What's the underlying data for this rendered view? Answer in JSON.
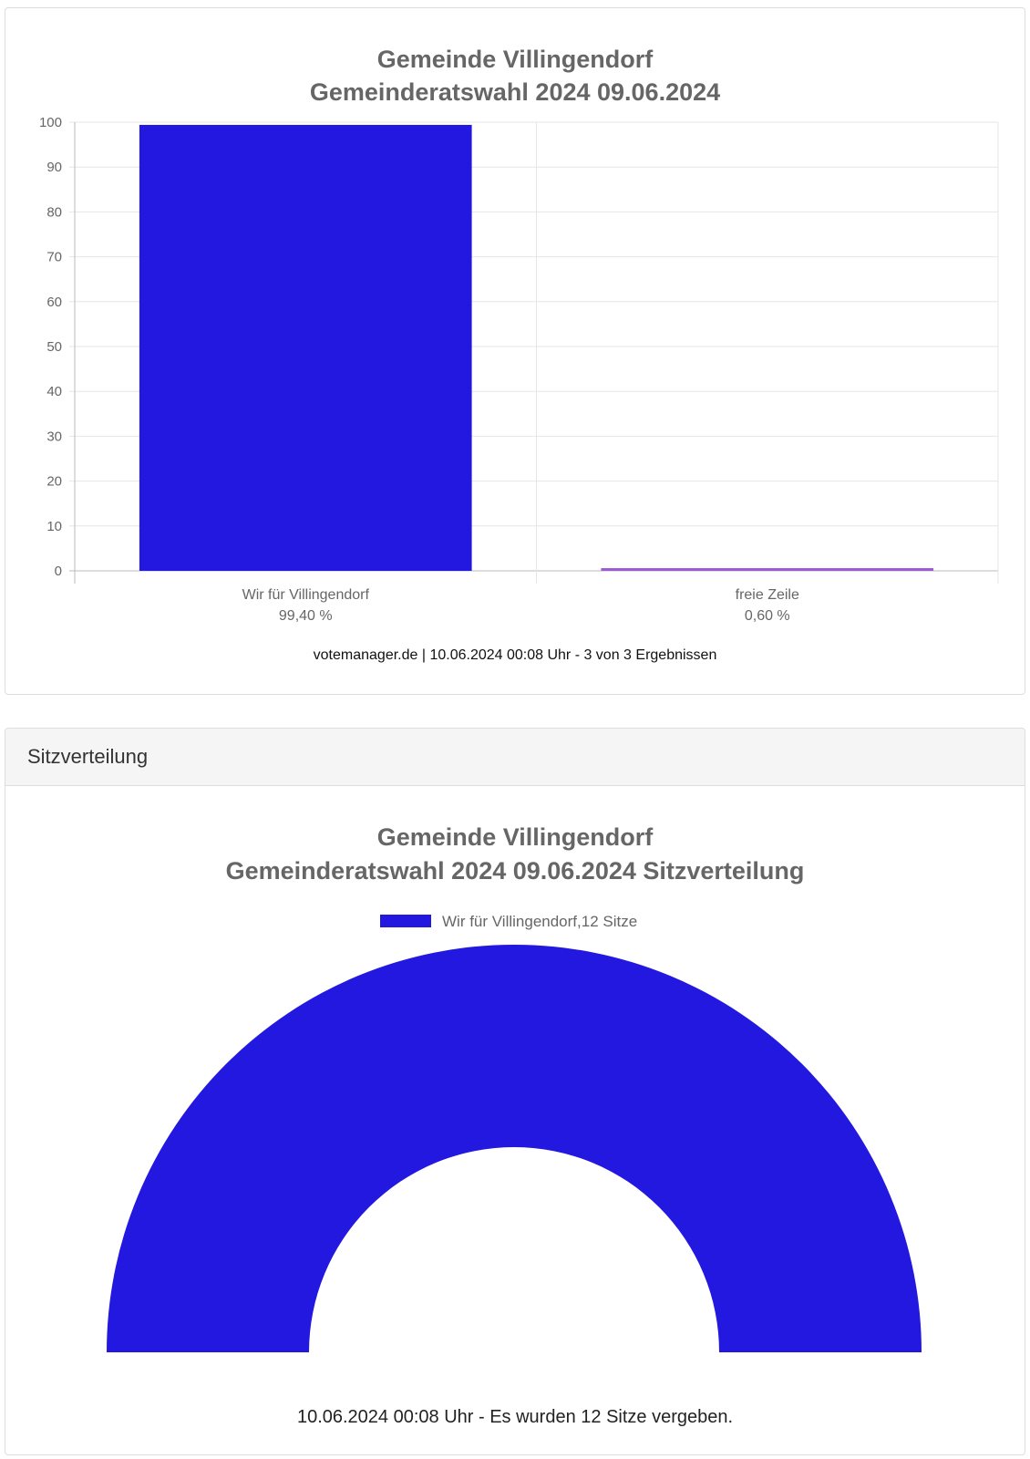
{
  "bar_panel": {
    "title_line1": "Gemeinde Villingendorf",
    "title_line2": "Gemeinderatswahl 2024 09.06.2024",
    "footer": "votemanager.de | 10.06.2024 00:08 Uhr - 3 von 3 Ergebnissen"
  },
  "seat_panel": {
    "header": "Sitzverteilung",
    "title_line1": "Gemeinde Villingendorf",
    "title_line2": "Gemeinderatswahl 2024 09.06.2024 Sitzverteilung",
    "legend_label": "Wir für Villingendorf,12 Sitze",
    "footer": "10.06.2024 00:08 Uhr - Es wurden 12 Sitze vergeben."
  },
  "chart_data": [
    {
      "type": "bar",
      "title": "Gemeinde Villingendorf Gemeinderatswahl 2024 09.06.2024",
      "categories": [
        "Wir für Villingendorf",
        "freie Zeile"
      ],
      "category_sublabels": [
        "99,40 %",
        "0,60 %"
      ],
      "values": [
        99.4,
        0.6
      ],
      "colors": [
        "#2318e0",
        "#9b59d6"
      ],
      "ylim": [
        0,
        100
      ],
      "yticks": [
        0,
        10,
        20,
        30,
        40,
        50,
        60,
        70,
        80,
        90,
        100
      ],
      "grid": true
    },
    {
      "type": "pie",
      "subtype": "half-doughnut",
      "title": "Gemeinde Villingendorf Gemeinderatswahl 2024 09.06.2024 Sitzverteilung",
      "categories": [
        "Wir für Villingendorf"
      ],
      "values": [
        12
      ],
      "colors": [
        "#2318e0"
      ],
      "legend": "top"
    }
  ]
}
